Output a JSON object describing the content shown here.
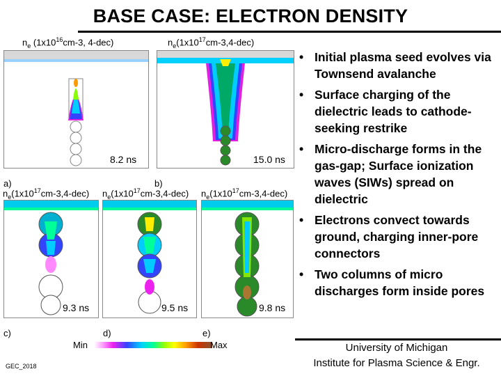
{
  "title": "BASE CASE: ELECTRON DENSITY",
  "panels": {
    "a": {
      "letter": "a)",
      "label_prefix": "n",
      "label_sub": "e",
      "label_mid": " (1x10",
      "label_sup": "16",
      "label_suffix": "cm-3, 4-dec)",
      "time": "8.2 ns"
    },
    "b": {
      "letter": "b)",
      "label_prefix": "n",
      "label_sub": "e",
      "label_mid": "(1x10",
      "label_sup": "17",
      "label_suffix": "cm-3,4-dec)",
      "time": "15.0 ns"
    },
    "c": {
      "letter": "c)",
      "label_prefix": "n",
      "label_sub": "e",
      "label_mid": "(1x10",
      "label_sup": "17",
      "label_suffix": "cm-3,4-dec)",
      "time": "9.3 ns"
    },
    "d": {
      "letter": "d)",
      "label_prefix": "n",
      "label_sub": "e",
      "label_mid": "(1x10",
      "label_sup": "17",
      "label_suffix": "cm-3,4-dec)",
      "time": "9.5 ns"
    },
    "e": {
      "letter": "e)",
      "label_prefix": "n",
      "label_sub": "e",
      "label_mid": "(1x10",
      "label_sup": "17",
      "label_suffix": "cm-3,4-dec)",
      "time": "9.8 ns"
    }
  },
  "colorbar": {
    "min_label": "Min",
    "max_label": "Max"
  },
  "bullets": [
    "Initial plasma seed evolves via Townsend avalanche",
    "Surface charging of the dielectric leads to cathode-seeking restrike",
    "Micro-discharge forms in the gas-gap; Surface ionization waves (SIWs) spread on dielectric",
    "Electrons convect towards ground, charging inner-pore connectors",
    "Two columns of micro discharges form inside pores"
  ],
  "bullet_symbol": "•",
  "footer": {
    "line1": "University of Michigan",
    "line2": "Institute for Plasma Science & Engr."
  },
  "corner_note": "GEC_2018"
}
